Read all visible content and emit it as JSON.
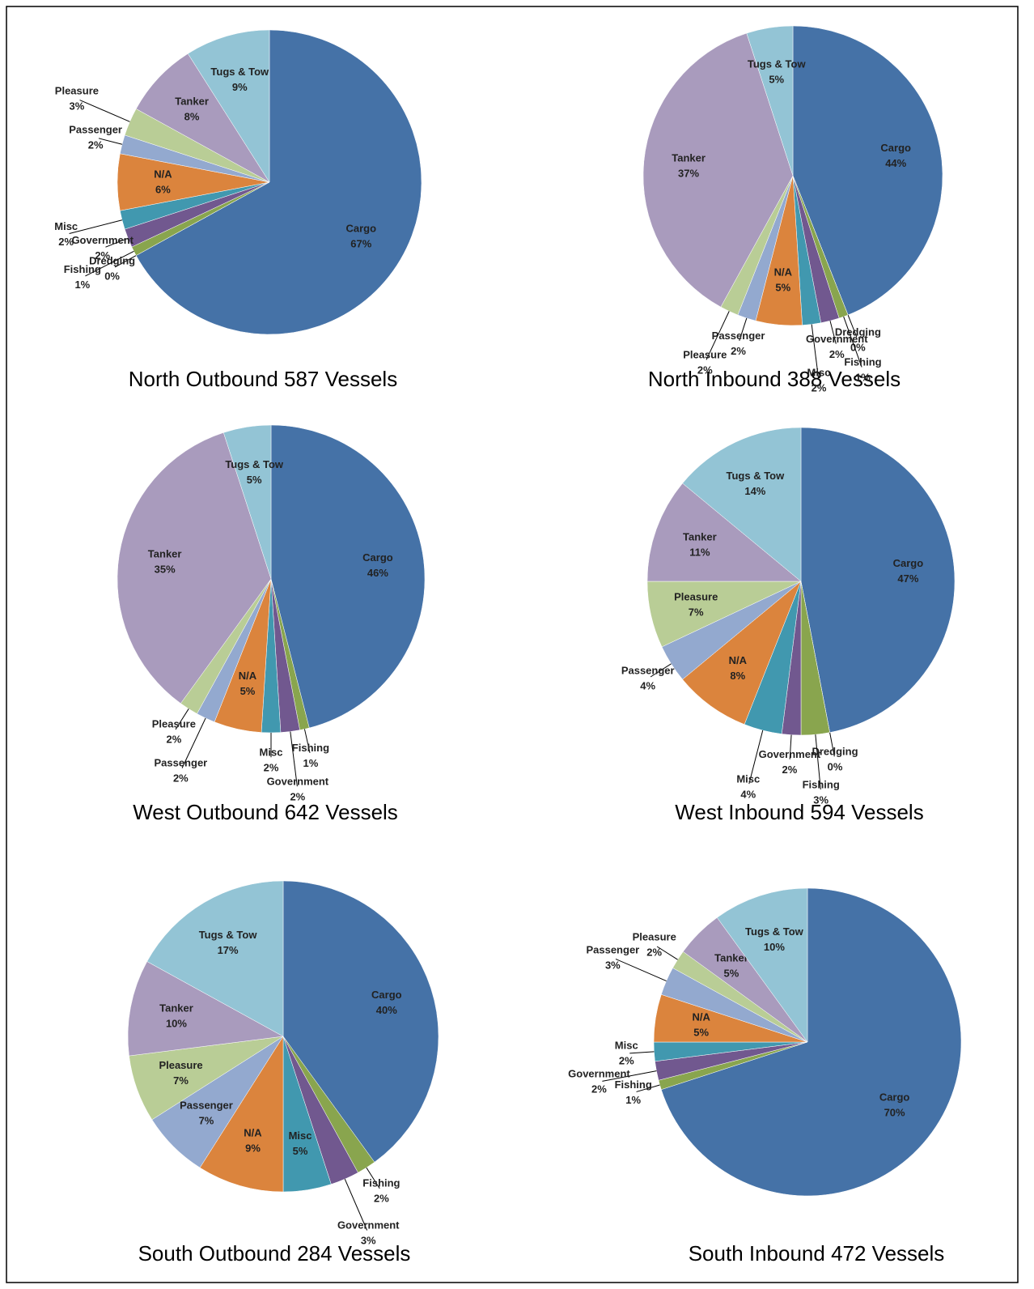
{
  "chart_data": [
    {
      "type": "pie",
      "title": "North Outbound 587 Vessels",
      "categories": [
        "Cargo",
        "Dredging",
        "Fishing",
        "Government",
        "Misc",
        "N/A",
        "Passenger",
        "Pleasure",
        "Tanker",
        "Tugs & Tow"
      ],
      "values": [
        67,
        0,
        1,
        2,
        2,
        6,
        2,
        3,
        8,
        9
      ],
      "value_labels": [
        "67%",
        "0%",
        "1%",
        "2%",
        "2%",
        "6%",
        "2%",
        "3%",
        "8%",
        "9%"
      ],
      "colors": [
        "#4572a7",
        "#c0504d",
        "#89a54e",
        "#71588f",
        "#4198af",
        "#db843d",
        "#93a9cf",
        "#b9cd96",
        "#a99bbd",
        "#93c4d5"
      ]
    },
    {
      "type": "pie",
      "title": "North Inbound 388 Vessels",
      "categories": [
        "Cargo",
        "Dredging",
        "Fishing",
        "Government",
        "Misc",
        "N/A",
        "Passenger",
        "Pleasure",
        "Tanker",
        "Tugs & Tow"
      ],
      "values": [
        44,
        0,
        1,
        2,
        2,
        5,
        2,
        2,
        37,
        5
      ],
      "value_labels": [
        "44%",
        "0%",
        "1%",
        "2%",
        "2%",
        "5%",
        "2%",
        "2%",
        "37%",
        "5%"
      ],
      "colors": [
        "#4572a7",
        "#c0504d",
        "#89a54e",
        "#71588f",
        "#4198af",
        "#db843d",
        "#93a9cf",
        "#b9cd96",
        "#a99bbd",
        "#93c4d5"
      ]
    },
    {
      "type": "pie",
      "title": "West Outbound 642 Vessels",
      "categories": [
        "Cargo",
        "Fishing",
        "Government",
        "Misc",
        "N/A",
        "Passenger",
        "Pleasure",
        "Tanker",
        "Tugs & Tow"
      ],
      "values": [
        46,
        1,
        2,
        2,
        5,
        2,
        2,
        35,
        5
      ],
      "value_labels": [
        "46%",
        "1%",
        "2%",
        "2%",
        "5%",
        "2%",
        "2%",
        "35%",
        "5%"
      ],
      "colors": [
        "#4572a7",
        "#89a54e",
        "#71588f",
        "#4198af",
        "#db843d",
        "#93a9cf",
        "#b9cd96",
        "#a99bbd",
        "#93c4d5"
      ]
    },
    {
      "type": "pie",
      "title": "West Inbound 594 Vessels",
      "categories": [
        "Cargo",
        "Dredging",
        "Fishing",
        "Government",
        "Misc",
        "N/A",
        "Passenger",
        "Pleasure",
        "Tanker",
        "Tugs & Tow"
      ],
      "values": [
        47,
        0,
        3,
        2,
        4,
        8,
        4,
        7,
        11,
        14
      ],
      "value_labels": [
        "47%",
        "0%",
        "3%",
        "2%",
        "4%",
        "8%",
        "4%",
        "7%",
        "11%",
        "14%"
      ],
      "colors": [
        "#4572a7",
        "#c0504d",
        "#89a54e",
        "#71588f",
        "#4198af",
        "#db843d",
        "#93a9cf",
        "#b9cd96",
        "#a99bbd",
        "#93c4d5"
      ]
    },
    {
      "type": "pie",
      "title": "South Outbound 284 Vessels",
      "categories": [
        "Cargo",
        "Fishing",
        "Government",
        "Misc",
        "N/A",
        "Passenger",
        "Pleasure",
        "Tanker",
        "Tugs & Tow"
      ],
      "values": [
        40,
        2,
        3,
        5,
        9,
        7,
        7,
        10,
        17
      ],
      "value_labels": [
        "40%",
        "2%",
        "3%",
        "5%",
        "9%",
        "7%",
        "7%",
        "10%",
        "17%"
      ],
      "colors": [
        "#4572a7",
        "#89a54e",
        "#71588f",
        "#4198af",
        "#db843d",
        "#93a9cf",
        "#b9cd96",
        "#a99bbd",
        "#93c4d5"
      ]
    },
    {
      "type": "pie",
      "title": "South Inbound 472 Vessels",
      "categories": [
        "Cargo",
        "Fishing",
        "Government",
        "Misc",
        "N/A",
        "Passenger",
        "Pleasure",
        "Tanker",
        "Tugs & Tow"
      ],
      "values": [
        70,
        1,
        2,
        2,
        5,
        3,
        2,
        5,
        10
      ],
      "value_labels": [
        "70%",
        "1%",
        "2%",
        "2%",
        "5%",
        "3%",
        "2%",
        "5%",
        "10%"
      ],
      "colors": [
        "#4572a7",
        "#89a54e",
        "#71588f",
        "#4198af",
        "#db843d",
        "#93a9cf",
        "#b9cd96",
        "#a99bbd",
        "#93c4d5"
      ]
    }
  ]
}
